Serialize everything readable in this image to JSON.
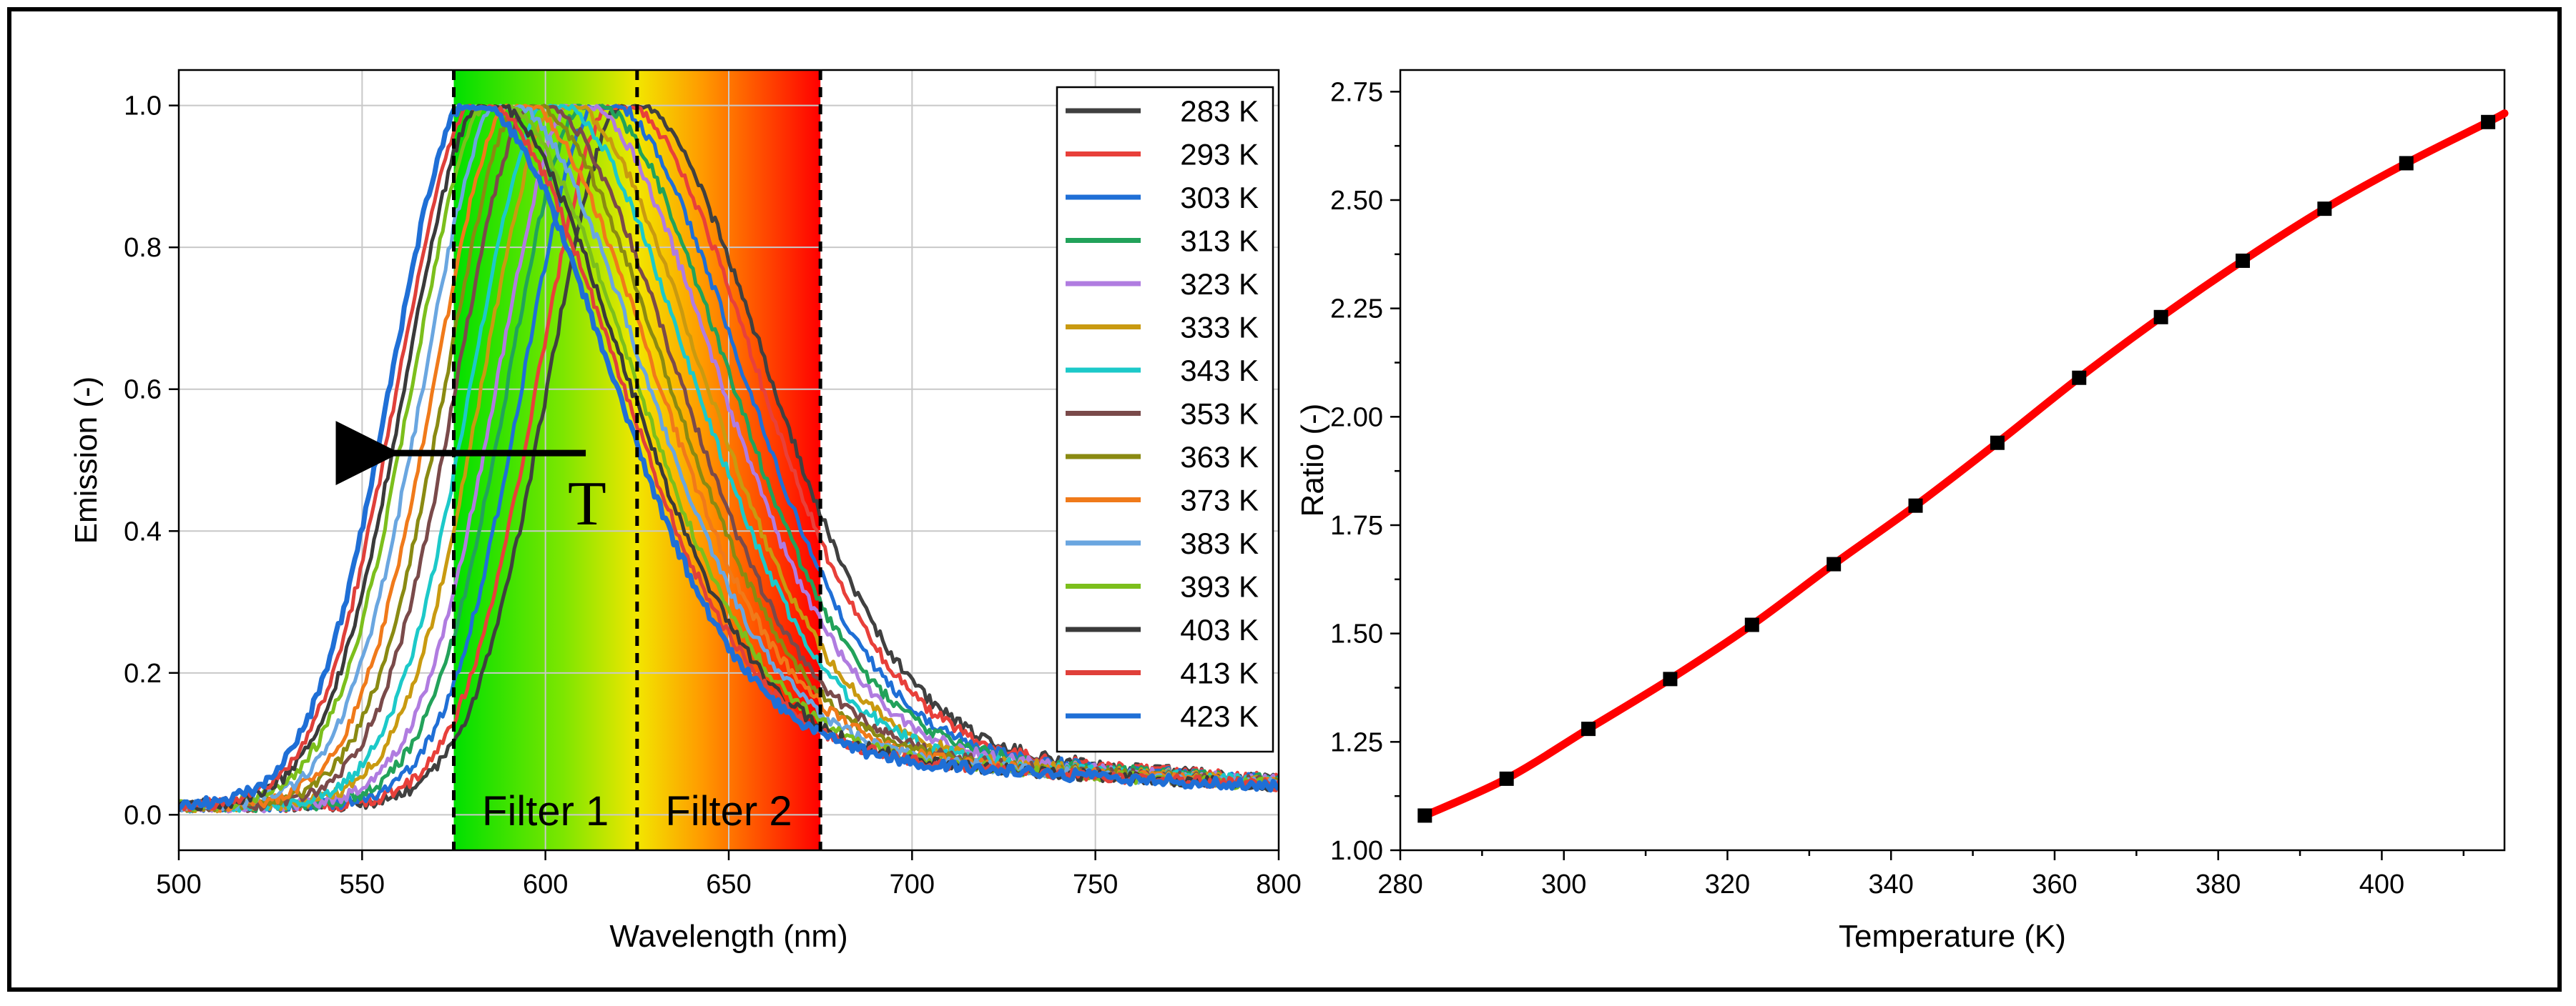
{
  "colors": {
    "band_green": "#00e000",
    "band_yellow": "#f2e600",
    "band_orange": "#ff9900",
    "band_red": "#ff0000",
    "ratio_line": "#ff0000",
    "ratio_marker": "#000000"
  },
  "chart_data": [
    {
      "type": "line",
      "title": "",
      "xlabel": "Wavelength (nm)",
      "ylabel": "Emission (-)",
      "xlim": [
        500,
        800
      ],
      "ylim": [
        -0.05,
        1.05
      ],
      "xticks": [
        "500",
        "550",
        "600",
        "650",
        "700",
        "750",
        "800"
      ],
      "yticks": [
        "0.0",
        "0.2",
        "0.4",
        "0.6",
        "0.8",
        "1.0"
      ],
      "grid": true,
      "legend_position": "top-right",
      "annotations": {
        "filter1_label": "Filter 1",
        "filter2_label": "Filter 2",
        "filter_edges_nm": [
          575,
          625,
          675
        ],
        "arrow_label": "T",
        "arrow_from": {
          "x": 611,
          "y": 0.51
        },
        "arrow_to": {
          "x": 551,
          "y": 0.51
        }
      },
      "series": [
        {
          "name": "283 K",
          "color": "#404040",
          "peak_nm": 623
        },
        {
          "name": "293 K",
          "color": "#e8403a",
          "peak_nm": 620
        },
        {
          "name": "303 K",
          "color": "#1f6fd6",
          "peak_nm": 616
        },
        {
          "name": "313 K",
          "color": "#22a25a",
          "peak_nm": 612
        },
        {
          "name": "323 K",
          "color": "#b07ce0",
          "peak_nm": 609
        },
        {
          "name": "333 K",
          "color": "#c99a10",
          "peak_nm": 605
        },
        {
          "name": "343 K",
          "color": "#1cc9c9",
          "peak_nm": 602
        },
        {
          "name": "353 K",
          "color": "#7a4a4a",
          "peak_nm": 598
        },
        {
          "name": "363 K",
          "color": "#8a8a12",
          "peak_nm": 595
        },
        {
          "name": "373 K",
          "color": "#f07a1a",
          "peak_nm": 592
        },
        {
          "name": "383 K",
          "color": "#6aa6e0",
          "peak_nm": 589
        },
        {
          "name": "393 K",
          "color": "#7cbf1c",
          "peak_nm": 586
        },
        {
          "name": "403 K",
          "color": "#3a3a3a",
          "peak_nm": 584
        },
        {
          "name": "413 K",
          "color": "#e0403a",
          "peak_nm": 582
        },
        {
          "name": "423 K",
          "color": "#1f6fd6",
          "peak_nm": 580
        }
      ]
    },
    {
      "type": "scatter",
      "title": "",
      "xlabel": "Temperature (K)",
      "ylabel": "Ratio (-)",
      "xlim": [
        280,
        415
      ],
      "ylim": [
        1.0,
        2.8
      ],
      "xticks": [
        "280",
        "300",
        "320",
        "340",
        "360",
        "380",
        "400"
      ],
      "yticks": [
        "1.00",
        "1.25",
        "1.50",
        "1.75",
        "2.00",
        "2.25",
        "2.50",
        "2.75"
      ],
      "grid": false,
      "x": [
        283,
        293,
        303,
        313,
        323,
        333,
        343,
        353,
        363,
        373,
        383,
        393,
        403,
        413
      ],
      "y": [
        1.08,
        1.165,
        1.28,
        1.395,
        1.52,
        1.66,
        1.795,
        1.94,
        2.09,
        2.23,
        2.36,
        2.48,
        2.585,
        2.68
      ],
      "fit_line": {
        "x": [
          283,
          293,
          303,
          313,
          323,
          333,
          343,
          353,
          363,
          373,
          383,
          393,
          403,
          413,
          415
        ],
        "y": [
          1.08,
          1.165,
          1.28,
          1.395,
          1.52,
          1.66,
          1.795,
          1.94,
          2.09,
          2.23,
          2.36,
          2.48,
          2.585,
          2.68,
          2.7
        ]
      }
    }
  ]
}
